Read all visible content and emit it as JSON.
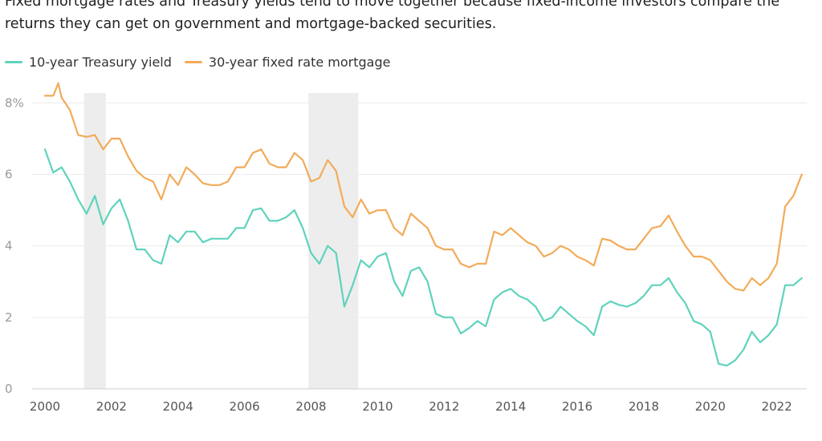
{
  "subtitle": "Fixed mortgage rates and Treasury yields tend to move together because fixed-income investors compare the returns they can get on government and mortgage-backed securities.",
  "chart_data": {
    "type": "line",
    "xlim": [
      2000,
      2022.9
    ],
    "ylim": [
      0,
      8.5
    ],
    "x_ticks": [
      2000,
      2002,
      2004,
      2006,
      2008,
      2010,
      2012,
      2014,
      2016,
      2018,
      2020,
      2022
    ],
    "x_tick_labels": [
      "2000",
      "2002",
      "2004",
      "2006",
      "2008",
      "2010",
      "2012",
      "2014",
      "2016",
      "2018",
      "2020",
      "2022"
    ],
    "y_ticks": [
      0,
      2,
      4,
      6,
      8
    ],
    "y_tick_labels": [
      "0",
      "2",
      "4",
      "6",
      "8%"
    ],
    "grid": "horizontal",
    "legend_position": "top-left",
    "recessions": [
      [
        2001.17,
        2001.83
      ],
      [
        2007.92,
        2009.42
      ]
    ],
    "series": [
      {
        "name": "10-year Treasury yield",
        "color": "#5fd3bc",
        "points": [
          [
            2000.0,
            6.7
          ],
          [
            2000.25,
            6.05
          ],
          [
            2000.5,
            6.2
          ],
          [
            2000.75,
            5.8
          ],
          [
            2001.0,
            5.3
          ],
          [
            2001.25,
            4.9
          ],
          [
            2001.5,
            5.4
          ],
          [
            2001.75,
            4.6
          ],
          [
            2002.0,
            5.05
          ],
          [
            2002.25,
            5.3
          ],
          [
            2002.5,
            4.7
          ],
          [
            2002.75,
            3.9
          ],
          [
            2003.0,
            3.9
          ],
          [
            2003.25,
            3.6
          ],
          [
            2003.5,
            3.5
          ],
          [
            2003.75,
            4.3
          ],
          [
            2004.0,
            4.1
          ],
          [
            2004.25,
            4.4
          ],
          [
            2004.5,
            4.4
          ],
          [
            2004.75,
            4.1
          ],
          [
            2005.0,
            4.2
          ],
          [
            2005.25,
            4.2
          ],
          [
            2005.5,
            4.2
          ],
          [
            2005.75,
            4.5
          ],
          [
            2006.0,
            4.5
          ],
          [
            2006.25,
            5.0
          ],
          [
            2006.5,
            5.05
          ],
          [
            2006.75,
            4.7
          ],
          [
            2007.0,
            4.7
          ],
          [
            2007.25,
            4.8
          ],
          [
            2007.5,
            5.0
          ],
          [
            2007.75,
            4.5
          ],
          [
            2008.0,
            3.8
          ],
          [
            2008.25,
            3.5
          ],
          [
            2008.5,
            4.0
          ],
          [
            2008.75,
            3.8
          ],
          [
            2009.0,
            2.3
          ],
          [
            2009.25,
            2.9
          ],
          [
            2009.5,
            3.6
          ],
          [
            2009.75,
            3.4
          ],
          [
            2010.0,
            3.7
          ],
          [
            2010.25,
            3.8
          ],
          [
            2010.5,
            3.0
          ],
          [
            2010.75,
            2.6
          ],
          [
            2011.0,
            3.3
          ],
          [
            2011.25,
            3.4
          ],
          [
            2011.5,
            3.0
          ],
          [
            2011.75,
            2.1
          ],
          [
            2012.0,
            2.0
          ],
          [
            2012.25,
            2.0
          ],
          [
            2012.5,
            1.55
          ],
          [
            2012.75,
            1.7
          ],
          [
            2013.0,
            1.9
          ],
          [
            2013.25,
            1.75
          ],
          [
            2013.5,
            2.5
          ],
          [
            2013.75,
            2.7
          ],
          [
            2014.0,
            2.8
          ],
          [
            2014.25,
            2.6
          ],
          [
            2014.5,
            2.5
          ],
          [
            2014.75,
            2.3
          ],
          [
            2015.0,
            1.9
          ],
          [
            2015.25,
            2.0
          ],
          [
            2015.5,
            2.3
          ],
          [
            2015.75,
            2.1
          ],
          [
            2016.0,
            1.9
          ],
          [
            2016.25,
            1.75
          ],
          [
            2016.5,
            1.5
          ],
          [
            2016.75,
            2.3
          ],
          [
            2017.0,
            2.45
          ],
          [
            2017.25,
            2.35
          ],
          [
            2017.5,
            2.3
          ],
          [
            2017.75,
            2.4
          ],
          [
            2018.0,
            2.6
          ],
          [
            2018.25,
            2.9
          ],
          [
            2018.5,
            2.9
          ],
          [
            2018.75,
            3.1
          ],
          [
            2019.0,
            2.7
          ],
          [
            2019.25,
            2.4
          ],
          [
            2019.5,
            1.9
          ],
          [
            2019.75,
            1.8
          ],
          [
            2020.0,
            1.6
          ],
          [
            2020.25,
            0.7
          ],
          [
            2020.5,
            0.65
          ],
          [
            2020.75,
            0.8
          ],
          [
            2021.0,
            1.1
          ],
          [
            2021.25,
            1.6
          ],
          [
            2021.5,
            1.3
          ],
          [
            2021.75,
            1.5
          ],
          [
            2022.0,
            1.8
          ],
          [
            2022.25,
            2.9
          ],
          [
            2022.5,
            2.9
          ],
          [
            2022.75,
            3.1
          ]
        ]
      },
      {
        "name": "30-year fixed rate mortgage",
        "color": "#f2ab5a",
        "points": [
          [
            2000.0,
            8.2
          ],
          [
            2000.25,
            8.2
          ],
          [
            2000.4,
            8.55
          ],
          [
            2000.5,
            8.15
          ],
          [
            2000.75,
            7.8
          ],
          [
            2001.0,
            7.1
          ],
          [
            2001.25,
            7.05
          ],
          [
            2001.5,
            7.1
          ],
          [
            2001.75,
            6.7
          ],
          [
            2002.0,
            7.0
          ],
          [
            2002.25,
            7.0
          ],
          [
            2002.5,
            6.5
          ],
          [
            2002.75,
            6.1
          ],
          [
            2003.0,
            5.9
          ],
          [
            2003.25,
            5.8
          ],
          [
            2003.5,
            5.3
          ],
          [
            2003.75,
            6.0
          ],
          [
            2004.0,
            5.7
          ],
          [
            2004.25,
            6.2
          ],
          [
            2004.5,
            6.0
          ],
          [
            2004.75,
            5.75
          ],
          [
            2005.0,
            5.7
          ],
          [
            2005.25,
            5.7
          ],
          [
            2005.5,
            5.8
          ],
          [
            2005.75,
            6.2
          ],
          [
            2006.0,
            6.2
          ],
          [
            2006.25,
            6.6
          ],
          [
            2006.5,
            6.7
          ],
          [
            2006.75,
            6.3
          ],
          [
            2007.0,
            6.2
          ],
          [
            2007.25,
            6.2
          ],
          [
            2007.5,
            6.6
          ],
          [
            2007.75,
            6.4
          ],
          [
            2008.0,
            5.8
          ],
          [
            2008.25,
            5.9
          ],
          [
            2008.5,
            6.4
          ],
          [
            2008.75,
            6.1
          ],
          [
            2009.0,
            5.1
          ],
          [
            2009.25,
            4.8
          ],
          [
            2009.5,
            5.3
          ],
          [
            2009.75,
            4.9
          ],
          [
            2010.0,
            5.0
          ],
          [
            2010.25,
            5.0
          ],
          [
            2010.5,
            4.5
          ],
          [
            2010.75,
            4.3
          ],
          [
            2011.0,
            4.9
          ],
          [
            2011.25,
            4.7
          ],
          [
            2011.5,
            4.5
          ],
          [
            2011.75,
            4.0
          ],
          [
            2012.0,
            3.9
          ],
          [
            2012.25,
            3.9
          ],
          [
            2012.5,
            3.5
          ],
          [
            2012.75,
            3.4
          ],
          [
            2013.0,
            3.5
          ],
          [
            2013.25,
            3.5
          ],
          [
            2013.5,
            4.4
          ],
          [
            2013.75,
            4.3
          ],
          [
            2014.0,
            4.5
          ],
          [
            2014.25,
            4.3
          ],
          [
            2014.5,
            4.1
          ],
          [
            2014.75,
            4.0
          ],
          [
            2015.0,
            3.7
          ],
          [
            2015.25,
            3.8
          ],
          [
            2015.5,
            4.0
          ],
          [
            2015.75,
            3.9
          ],
          [
            2016.0,
            3.7
          ],
          [
            2016.25,
            3.6
          ],
          [
            2016.5,
            3.45
          ],
          [
            2016.75,
            4.2
          ],
          [
            2017.0,
            4.15
          ],
          [
            2017.25,
            4.0
          ],
          [
            2017.5,
            3.9
          ],
          [
            2017.75,
            3.9
          ],
          [
            2018.0,
            4.2
          ],
          [
            2018.25,
            4.5
          ],
          [
            2018.5,
            4.55
          ],
          [
            2018.75,
            4.85
          ],
          [
            2019.0,
            4.4
          ],
          [
            2019.25,
            4.0
          ],
          [
            2019.5,
            3.7
          ],
          [
            2019.75,
            3.7
          ],
          [
            2020.0,
            3.6
          ],
          [
            2020.25,
            3.3
          ],
          [
            2020.5,
            3.0
          ],
          [
            2020.75,
            2.8
          ],
          [
            2021.0,
            2.75
          ],
          [
            2021.25,
            3.1
          ],
          [
            2021.5,
            2.9
          ],
          [
            2021.75,
            3.1
          ],
          [
            2022.0,
            3.5
          ],
          [
            2022.25,
            5.1
          ],
          [
            2022.5,
            5.4
          ],
          [
            2022.75,
            6.0
          ]
        ]
      }
    ]
  }
}
